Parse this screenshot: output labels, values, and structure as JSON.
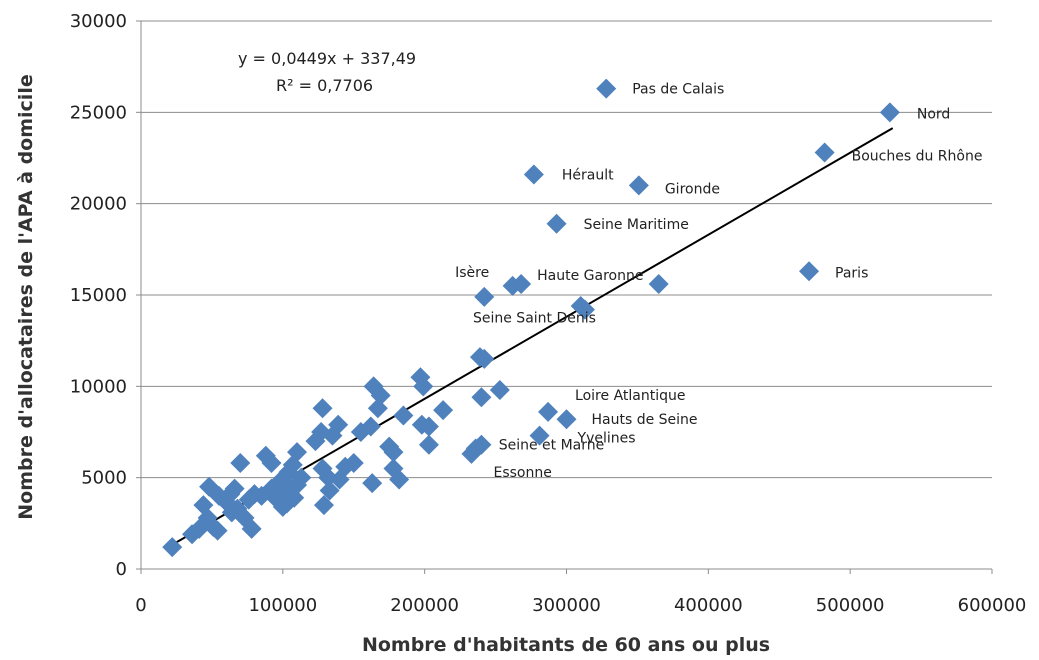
{
  "chart_data": {
    "type": "scatter",
    "title": "",
    "xlabel": "Nombre d'habitants de 60 ans ou plus",
    "ylabel": "Nombre d'allocataires de l'APA à domicile",
    "xlim": [
      0,
      600000
    ],
    "ylim": [
      0,
      30000
    ],
    "x_ticks": [
      0,
      100000,
      200000,
      300000,
      400000,
      500000,
      600000
    ],
    "y_ticks": [
      0,
      5000,
      10000,
      15000,
      20000,
      25000,
      30000
    ],
    "x_tick_labels": [
      "0",
      "100000",
      "200000",
      "300000",
      "400000",
      "500000",
      "600000"
    ],
    "y_tick_labels": [
      "0",
      "5000",
      "10000",
      "15000",
      "20000",
      "25000",
      "30000"
    ],
    "grid": "horizontal",
    "marker_color": "#4f81bd",
    "trendline": {
      "slope": 0.0449,
      "intercept": 337.49,
      "x_range": [
        22000,
        530000
      ],
      "equation": "y = 0,0449x + 337,49",
      "r2": "R² = 0,7706",
      "color": "#000000"
    },
    "points": [
      {
        "x": 328000,
        "y": 26300,
        "label": "Pas de Calais"
      },
      {
        "x": 528000,
        "y": 25000,
        "label": "Nord"
      },
      {
        "x": 482000,
        "y": 22800,
        "label": "Bouches du Rhône"
      },
      {
        "x": 277000,
        "y": 21600,
        "label": "Hérault"
      },
      {
        "x": 351000,
        "y": 21000,
        "label": "Gironde"
      },
      {
        "x": 293000,
        "y": 18900,
        "label": "Seine Maritime"
      },
      {
        "x": 471000,
        "y": 16300,
        "label": "Paris"
      },
      {
        "x": 365000,
        "y": 15600,
        "label": ""
      },
      {
        "x": 262000,
        "y": 15500,
        "label": ""
      },
      {
        "x": 268000,
        "y": 15600,
        "label": "Haute Garonne"
      },
      {
        "x": 242000,
        "y": 14900,
        "label": "Isère"
      },
      {
        "x": 310000,
        "y": 14400,
        "label": ""
      },
      {
        "x": 313000,
        "y": 14200,
        "label": "Seine Saint Denis"
      },
      {
        "x": 239000,
        "y": 11600,
        "label": ""
      },
      {
        "x": 242000,
        "y": 11500,
        "label": ""
      },
      {
        "x": 253000,
        "y": 9800,
        "label": ""
      },
      {
        "x": 240000,
        "y": 9400,
        "label": ""
      },
      {
        "x": 287000,
        "y": 8600,
        "label": "Loire Atlantique"
      },
      {
        "x": 300000,
        "y": 8200,
        "label": "Hauts de Seine"
      },
      {
        "x": 281000,
        "y": 7300,
        "label": "Yvelines"
      },
      {
        "x": 236000,
        "y": 6600,
        "label": "Seine et Marne"
      },
      {
        "x": 233000,
        "y": 6300,
        "label": "Essonne"
      },
      {
        "x": 240000,
        "y": 6800,
        "label": ""
      },
      {
        "x": 197000,
        "y": 10500,
        "label": ""
      },
      {
        "x": 199000,
        "y": 10000,
        "label": ""
      },
      {
        "x": 213000,
        "y": 8700,
        "label": ""
      },
      {
        "x": 198000,
        "y": 7900,
        "label": ""
      },
      {
        "x": 203000,
        "y": 7800,
        "label": ""
      },
      {
        "x": 203000,
        "y": 6800,
        "label": ""
      },
      {
        "x": 185000,
        "y": 8400,
        "label": ""
      },
      {
        "x": 164000,
        "y": 10000,
        "label": ""
      },
      {
        "x": 169000,
        "y": 9500,
        "label": ""
      },
      {
        "x": 167000,
        "y": 8800,
        "label": ""
      },
      {
        "x": 162000,
        "y": 7800,
        "label": ""
      },
      {
        "x": 155000,
        "y": 7500,
        "label": ""
      },
      {
        "x": 178000,
        "y": 6400,
        "label": ""
      },
      {
        "x": 175000,
        "y": 6700,
        "label": ""
      },
      {
        "x": 178000,
        "y": 5500,
        "label": ""
      },
      {
        "x": 182000,
        "y": 4900,
        "label": ""
      },
      {
        "x": 163000,
        "y": 4700,
        "label": ""
      },
      {
        "x": 150000,
        "y": 5800,
        "label": ""
      },
      {
        "x": 144000,
        "y": 5600,
        "label": ""
      },
      {
        "x": 140000,
        "y": 4900,
        "label": ""
      },
      {
        "x": 139000,
        "y": 7900,
        "label": ""
      },
      {
        "x": 135000,
        "y": 7300,
        "label": ""
      },
      {
        "x": 128000,
        "y": 8800,
        "label": ""
      },
      {
        "x": 127000,
        "y": 7500,
        "label": ""
      },
      {
        "x": 123000,
        "y": 7000,
        "label": ""
      },
      {
        "x": 128000,
        "y": 5500,
        "label": ""
      },
      {
        "x": 132000,
        "y": 5000,
        "label": ""
      },
      {
        "x": 133000,
        "y": 4300,
        "label": ""
      },
      {
        "x": 129000,
        "y": 3500,
        "label": ""
      },
      {
        "x": 110000,
        "y": 6400,
        "label": ""
      },
      {
        "x": 107000,
        "y": 5700,
        "label": ""
      },
      {
        "x": 104000,
        "y": 5300,
        "label": ""
      },
      {
        "x": 101000,
        "y": 5000,
        "label": ""
      },
      {
        "x": 98000,
        "y": 4800,
        "label": ""
      },
      {
        "x": 95000,
        "y": 4200,
        "label": ""
      },
      {
        "x": 102000,
        "y": 4000,
        "label": ""
      },
      {
        "x": 106000,
        "y": 4400,
        "label": ""
      },
      {
        "x": 110000,
        "y": 4600,
        "label": ""
      },
      {
        "x": 113000,
        "y": 5000,
        "label": ""
      },
      {
        "x": 108000,
        "y": 3900,
        "label": ""
      },
      {
        "x": 103000,
        "y": 3600,
        "label": ""
      },
      {
        "x": 100000,
        "y": 3400,
        "label": ""
      },
      {
        "x": 96000,
        "y": 3800,
        "label": ""
      },
      {
        "x": 92000,
        "y": 4400,
        "label": ""
      },
      {
        "x": 88000,
        "y": 6200,
        "label": ""
      },
      {
        "x": 92000,
        "y": 5800,
        "label": ""
      },
      {
        "x": 85000,
        "y": 4000,
        "label": ""
      },
      {
        "x": 80000,
        "y": 4100,
        "label": ""
      },
      {
        "x": 76000,
        "y": 3800,
        "label": ""
      },
      {
        "x": 78000,
        "y": 2200,
        "label": ""
      },
      {
        "x": 73000,
        "y": 2800,
        "label": ""
      },
      {
        "x": 70000,
        "y": 5800,
        "label": ""
      },
      {
        "x": 66000,
        "y": 4400,
        "label": ""
      },
      {
        "x": 63000,
        "y": 4100,
        "label": ""
      },
      {
        "x": 61000,
        "y": 3600,
        "label": ""
      },
      {
        "x": 64000,
        "y": 3100,
        "label": ""
      },
      {
        "x": 68000,
        "y": 3300,
        "label": ""
      },
      {
        "x": 55000,
        "y": 4000,
        "label": ""
      },
      {
        "x": 48000,
        "y": 4500,
        "label": ""
      },
      {
        "x": 44000,
        "y": 3500,
        "label": ""
      },
      {
        "x": 47000,
        "y": 2800,
        "label": ""
      },
      {
        "x": 51000,
        "y": 2300,
        "label": ""
      },
      {
        "x": 54000,
        "y": 2100,
        "label": ""
      },
      {
        "x": 41000,
        "y": 2200,
        "label": ""
      },
      {
        "x": 36000,
        "y": 1900,
        "label": ""
      },
      {
        "x": 22000,
        "y": 1200,
        "label": ""
      }
    ]
  }
}
